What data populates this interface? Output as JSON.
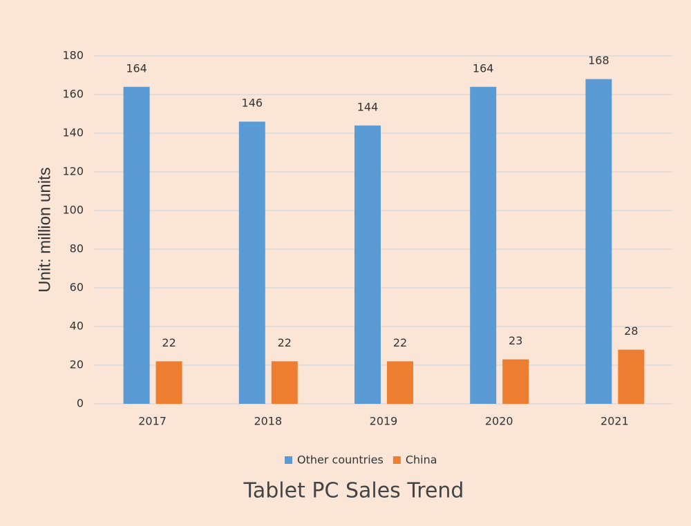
{
  "chart_data": {
    "type": "bar",
    "title": "Tablet PC Sales Trend",
    "y_label": "Unit: million units",
    "categories": [
      "2017",
      "2018",
      "2019",
      "2020",
      "2021"
    ],
    "series": [
      {
        "name": "Other countries",
        "color": "#5b9bd5",
        "values": [
          164,
          146,
          144,
          164,
          168
        ]
      },
      {
        "name": "China",
        "color": "#ed7d31",
        "values": [
          22,
          22,
          22,
          23,
          28
        ]
      }
    ],
    "ylim": [
      0,
      180
    ],
    "yticks": [
      0,
      20,
      40,
      60,
      80,
      100,
      120,
      140,
      160,
      180
    ],
    "grid": true,
    "legend": "bottom"
  }
}
